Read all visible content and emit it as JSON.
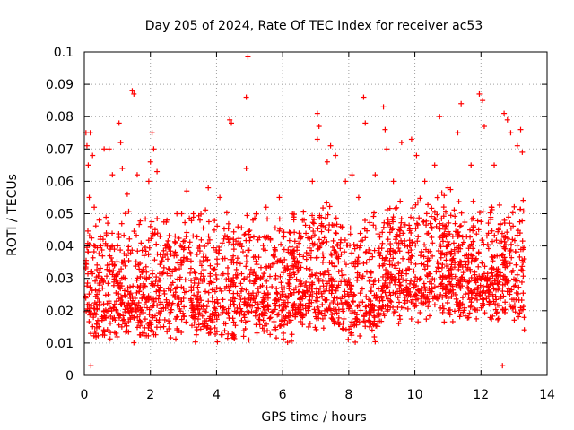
{
  "chart_data": {
    "type": "scatter",
    "title": "Day 205 of 2024, Rate Of TEC Index for receiver ac53",
    "xlabel": "GPS time / hours",
    "ylabel": "ROTI / TECUs",
    "xlim": [
      0,
      14
    ],
    "ylim": [
      0,
      0.1
    ],
    "xticks": [
      0,
      2,
      4,
      6,
      8,
      10,
      12,
      14
    ],
    "xtick_labels": [
      "0",
      "2",
      "4",
      "6",
      "8",
      "10",
      "12",
      "14"
    ],
    "yticks": [
      0,
      0.01,
      0.02,
      0.03,
      0.04,
      0.05,
      0.06,
      0.07,
      0.08,
      0.09,
      0.1
    ],
    "ytick_labels": [
      "0",
      "0.01",
      "0.02",
      "0.03",
      "0.04",
      "0.05",
      "0.06",
      "0.07",
      "0.08",
      "0.09",
      "0.1"
    ],
    "grid": true,
    "marker": "+",
    "color": "#ff0000",
    "series": [
      {
        "name": "ROTI",
        "points": [
          [
            0.05,
            0.075
          ],
          [
            0.08,
            0.071
          ],
          [
            0.12,
            0.065
          ],
          [
            0.18,
            0.075
          ],
          [
            0.15,
            0.055
          ],
          [
            0.25,
            0.068
          ],
          [
            0.3,
            0.052
          ],
          [
            0.45,
            0.048
          ],
          [
            0.6,
            0.07
          ],
          [
            0.75,
            0.07
          ],
          [
            0.85,
            0.062
          ],
          [
            1.05,
            0.078
          ],
          [
            1.1,
            0.072
          ],
          [
            1.15,
            0.064
          ],
          [
            1.3,
            0.056
          ],
          [
            1.45,
            0.088
          ],
          [
            1.5,
            0.087
          ],
          [
            1.6,
            0.062
          ],
          [
            1.95,
            0.06
          ],
          [
            2.0,
            0.066
          ],
          [
            2.05,
            0.075
          ],
          [
            2.1,
            0.07
          ],
          [
            2.2,
            0.063
          ],
          [
            2.5,
            0.048
          ],
          [
            2.8,
            0.05
          ],
          [
            3.1,
            0.057
          ],
          [
            3.3,
            0.05
          ],
          [
            3.5,
            0.048
          ],
          [
            3.75,
            0.058
          ],
          [
            4.1,
            0.055
          ],
          [
            4.4,
            0.079
          ],
          [
            4.45,
            0.078
          ],
          [
            4.9,
            0.064
          ],
          [
            4.95,
            0.0985
          ],
          [
            4.9,
            0.086
          ],
          [
            5.2,
            0.05
          ],
          [
            5.5,
            0.052
          ],
          [
            5.9,
            0.055
          ],
          [
            6.3,
            0.05
          ],
          [
            6.6,
            0.048
          ],
          [
            6.9,
            0.06
          ],
          [
            7.05,
            0.081
          ],
          [
            7.1,
            0.077
          ],
          [
            7.05,
            0.073
          ],
          [
            7.35,
            0.066
          ],
          [
            7.45,
            0.071
          ],
          [
            7.6,
            0.068
          ],
          [
            7.9,
            0.06
          ],
          [
            8.1,
            0.062
          ],
          [
            8.3,
            0.055
          ],
          [
            8.45,
            0.086
          ],
          [
            8.5,
            0.078
          ],
          [
            8.8,
            0.062
          ],
          [
            9.05,
            0.083
          ],
          [
            9.1,
            0.076
          ],
          [
            9.15,
            0.07
          ],
          [
            9.35,
            0.06
          ],
          [
            9.6,
            0.072
          ],
          [
            9.9,
            0.073
          ],
          [
            10.05,
            0.068
          ],
          [
            10.3,
            0.06
          ],
          [
            10.6,
            0.065
          ],
          [
            10.75,
            0.08
          ],
          [
            11.0,
            0.058
          ],
          [
            11.3,
            0.075
          ],
          [
            11.4,
            0.084
          ],
          [
            11.7,
            0.065
          ],
          [
            11.95,
            0.087
          ],
          [
            12.05,
            0.085
          ],
          [
            12.1,
            0.077
          ],
          [
            12.4,
            0.065
          ],
          [
            12.7,
            0.081
          ],
          [
            12.8,
            0.079
          ],
          [
            12.9,
            0.075
          ],
          [
            13.1,
            0.071
          ],
          [
            13.2,
            0.076
          ],
          [
            13.25,
            0.069
          ],
          [
            12.65,
            0.003
          ],
          [
            0.2,
            0.003
          ]
        ]
      }
    ]
  }
}
